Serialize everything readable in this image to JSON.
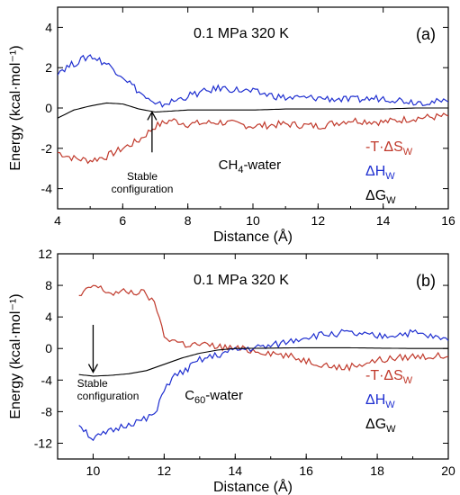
{
  "chart_data": [
    {
      "type": "line",
      "panel_label": "(a)",
      "condition": "0.1 MPa  320 K",
      "system_label": {
        "base": "CH",
        "sub": "4",
        "rest": "-water"
      },
      "annotation": [
        "Stable",
        "configuration"
      ],
      "xlabel": "Distance (Å)",
      "ylabel": "Energy (kcal·mol⁻¹)",
      "xlim": [
        4,
        16
      ],
      "ylim": [
        -5,
        5
      ],
      "xticks": [
        "4",
        "6",
        "8",
        "10",
        "12",
        "14",
        "16"
      ],
      "yticks": [
        "4",
        "2",
        "0",
        "-2",
        "-4"
      ],
      "arrow": {
        "x": 6.9,
        "from_y": -2.2,
        "to_y": -0.2,
        "direction": "up"
      },
      "series": [
        {
          "name": "-T·ΔS_W",
          "label": {
            "base": "-T·ΔS",
            "sub": "W"
          },
          "color": "#c0392b",
          "x": [
            4.0,
            4.5,
            5.0,
            5.5,
            6.0,
            6.5,
            7.0,
            7.5,
            8.0,
            9.0,
            10.0,
            11.0,
            12.0,
            13.0,
            14.0,
            15.0,
            16.0
          ],
          "y": [
            -2.2,
            -2.5,
            -2.6,
            -2.4,
            -2.0,
            -1.6,
            -0.9,
            -0.6,
            -0.8,
            -0.7,
            -0.9,
            -0.8,
            -0.9,
            -0.6,
            -0.7,
            -0.5,
            -0.4
          ]
        },
        {
          "name": "ΔH_W",
          "label": {
            "base": "ΔH",
            "sub": "W"
          },
          "color": "#1f2fd0",
          "x": [
            4.0,
            4.5,
            5.0,
            5.5,
            6.0,
            6.5,
            7.0,
            7.5,
            8.0,
            8.5,
            9.0,
            10.0,
            11.0,
            12.0,
            13.0,
            14.0,
            15.0,
            16.0
          ],
          "y": [
            1.8,
            2.2,
            2.6,
            2.2,
            1.6,
            0.8,
            0.1,
            0.3,
            0.6,
            0.8,
            1.0,
            0.8,
            0.5,
            0.5,
            0.4,
            0.5,
            0.3,
            0.3
          ]
        },
        {
          "name": "ΔG_W",
          "label": {
            "base": "ΔG",
            "sub": "W"
          },
          "color": "#000000",
          "x": [
            4.0,
            4.5,
            5.0,
            5.5,
            6.0,
            6.5,
            7.0,
            7.5,
            8.0,
            9.0,
            10.0,
            11.0,
            12.0,
            13.0,
            14.0,
            15.0,
            16.0
          ],
          "y": [
            -0.5,
            -0.1,
            0.1,
            0.25,
            0.2,
            -0.05,
            -0.2,
            -0.15,
            -0.1,
            -0.1,
            -0.1,
            -0.05,
            -0.05,
            -0.05,
            -0.05,
            0.0,
            0.0
          ]
        }
      ]
    },
    {
      "type": "line",
      "panel_label": "(b)",
      "condition": "0.1 MPa  320 K",
      "system_label": {
        "base": "C",
        "sub": "60",
        "rest": "-water"
      },
      "annotation": [
        "Stable",
        "configuration"
      ],
      "xlabel": "Distance (Å)",
      "ylabel": "Energy (kcal·mol⁻¹)",
      "xlim": [
        9,
        20
      ],
      "ylim": [
        -14,
        12
      ],
      "xticks": [
        "10",
        "12",
        "14",
        "16",
        "18",
        "20"
      ],
      "yticks": [
        "12",
        "8",
        "4",
        "0",
        "-4",
        "-8",
        "-12"
      ],
      "arrow": {
        "x": 10.0,
        "from_y": 3.0,
        "to_y": -3.0,
        "direction": "down"
      },
      "series": [
        {
          "name": "-T·ΔS_W",
          "label": {
            "base": "-T·ΔS",
            "sub": "W"
          },
          "color": "#c0392b",
          "x": [
            9.6,
            10.0,
            10.5,
            11.0,
            11.5,
            11.8,
            12.0,
            12.3,
            12.6,
            13.0,
            14.0,
            15.0,
            16.0,
            17.0,
            18.0,
            19.0,
            20.0
          ],
          "y": [
            6.5,
            8.0,
            7.0,
            7.2,
            7.0,
            5.0,
            1.5,
            1.0,
            0.5,
            0.5,
            0.0,
            -0.5,
            -1.5,
            -2.5,
            -1.5,
            -1.0,
            -1.0
          ]
        },
        {
          "name": "ΔH_W",
          "label": {
            "base": "ΔH",
            "sub": "W"
          },
          "color": "#1f2fd0",
          "x": [
            9.6,
            10.0,
            10.5,
            11.0,
            11.5,
            11.8,
            12.0,
            12.3,
            12.6,
            13.0,
            14.0,
            15.0,
            16.0,
            17.0,
            18.0,
            19.0,
            20.0
          ],
          "y": [
            -9.5,
            -11.5,
            -10.5,
            -9.5,
            -9.0,
            -8.0,
            -5.0,
            -3.5,
            -2.8,
            -1.5,
            -0.2,
            0.3,
            1.5,
            2.0,
            1.5,
            2.0,
            1.0
          ]
        },
        {
          "name": "ΔG_W",
          "label": {
            "base": "ΔG",
            "sub": "W"
          },
          "color": "#000000",
          "x": [
            9.6,
            10.0,
            10.5,
            11.0,
            11.5,
            12.0,
            12.5,
            13.0,
            13.5,
            14.0,
            15.0,
            16.0,
            17.0,
            18.0,
            19.0,
            20.0
          ],
          "y": [
            -3.3,
            -3.5,
            -3.4,
            -3.2,
            -2.8,
            -2.0,
            -1.2,
            -0.6,
            -0.2,
            0.0,
            0.05,
            0.1,
            0.1,
            0.05,
            0.0,
            0.0
          ]
        }
      ]
    }
  ]
}
